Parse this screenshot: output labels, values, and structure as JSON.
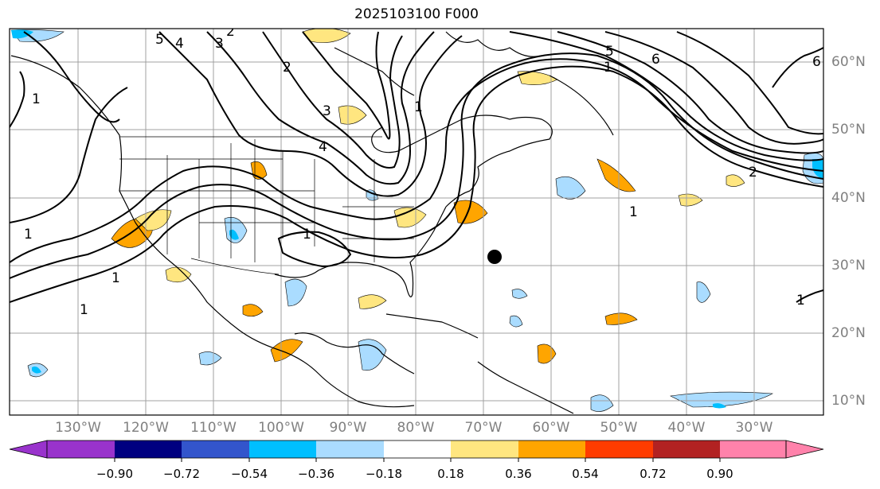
{
  "title": "2025103100 F000",
  "map": {
    "lon_labels": [
      "130°W",
      "120°W",
      "110°W",
      "100°W",
      "90°W",
      "80°W",
      "70°W",
      "60°W",
      "50°W",
      "40°W",
      "30°W"
    ],
    "lat_labels": [
      "60°N",
      "50°N",
      "40°N",
      "30°N",
      "20°N",
      "10°N"
    ],
    "contour_labels": [
      "5",
      "4",
      "3",
      "2",
      "1",
      "1",
      "1",
      "1",
      "1",
      "2",
      "3",
      "4",
      "5",
      "6",
      "6",
      "1",
      "1",
      "1",
      "1",
      "2"
    ],
    "marker": "black-dot"
  },
  "colorbar": {
    "ticks": [
      "−0.90",
      "−0.72",
      "−0.54",
      "−0.36",
      "−0.18",
      "0.18",
      "0.36",
      "0.54",
      "0.72",
      "0.90"
    ],
    "colors": [
      "#9933cc",
      "#000080",
      "#3355cc",
      "#00bfff",
      "#aadcff",
      "#ffffff",
      "#ffe680",
      "#ffa500",
      "#ff3c00",
      "#b22222",
      "#ff82ab"
    ]
  }
}
